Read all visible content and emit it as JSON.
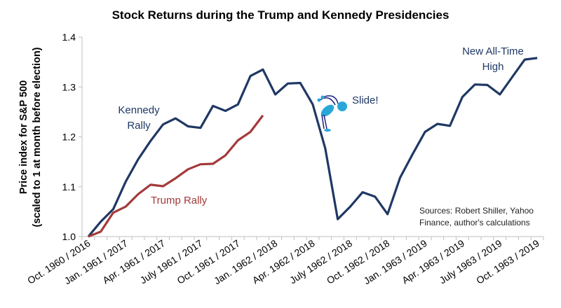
{
  "chart_data": {
    "type": "line",
    "title": "Stock Returns during the Trump and Kennedy Presidencies",
    "ylabel_line1": "Price index for S&P 500",
    "ylabel_line2": "(scaled to 1 at month before election)",
    "xlabel": "",
    "ylim": [
      1.0,
      1.4
    ],
    "yticks": [
      "1.0",
      "1.1",
      "1.2",
      "1.3",
      "1.4"
    ],
    "n_points": 37,
    "xtick_labels": [
      "Oct. 1960 / 2016",
      "Jan. 1961 / 2017",
      "Apr. 1961 / 2017",
      "July 1961 / 2017",
      "Oct. 1961 / 2017",
      "Jan. 1962 / 2018",
      "Apr. 1962 / 2018",
      "July 1962 / 2018",
      "Oct. 1962 / 2018",
      "Jan. 1963 / 2019",
      "Apr. 1963 / 2019",
      "July 1963 / 2019",
      "Oct. 1963 / 2019"
    ],
    "grid": false,
    "series": [
      {
        "name": "Kennedy Rally",
        "color": "#1f3864",
        "values": [
          1.0,
          1.03,
          1.055,
          1.11,
          1.155,
          1.192,
          1.225,
          1.237,
          1.221,
          1.218,
          1.262,
          1.252,
          1.265,
          1.322,
          1.335,
          1.285,
          1.307,
          1.308,
          1.265,
          1.177,
          1.035,
          1.06,
          1.089,
          1.08,
          1.045,
          1.118,
          1.165,
          1.21,
          1.226,
          1.222,
          1.28,
          1.305,
          1.304,
          1.285,
          1.32,
          1.355,
          1.358
        ]
      },
      {
        "name": "Trump Rally",
        "color": "#a33a3a",
        "values": [
          1.0,
          1.01,
          1.048,
          1.06,
          1.085,
          1.104,
          1.101,
          1.117,
          1.135,
          1.145,
          1.146,
          1.163,
          1.193,
          1.21,
          1.243
        ]
      }
    ],
    "annotations": {
      "kennedy_line1": "Kennedy",
      "kennedy_line2": "Rally",
      "trump": "Trump Rally",
      "slide": "Slide!",
      "high_line1": "New All-Time",
      "high_line2": "High",
      "sources_line1": "Sources: Robert Shiller, Yahoo",
      "sources_line2": "Finance, author's calculations"
    }
  }
}
